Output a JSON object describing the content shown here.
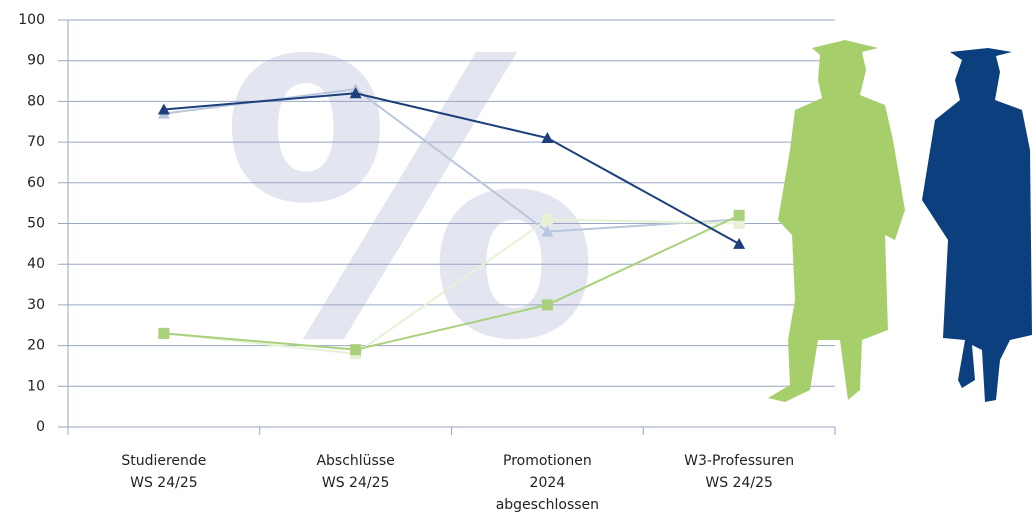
{
  "chart_data": {
    "type": "line",
    "watermark": "%",
    "categories": [
      [
        "Studierende",
        "WS 24/25"
      ],
      [
        "Abschlüsse",
        "WS 24/25"
      ],
      [
        "Promotionen",
        "2024",
        "abgeschlossen"
      ],
      [
        "W3-Professuren",
        "WS 24/25"
      ]
    ],
    "series": [
      {
        "color": "#b9c7de",
        "marker": "triangle",
        "values": [
          77,
          83,
          48,
          51
        ]
      },
      {
        "color": "#e7f1d6",
        "marker": "square",
        "values": [
          23,
          18,
          51,
          50
        ]
      },
      {
        "color": "#a9d17c",
        "marker": "square",
        "values": [
          23,
          19,
          30,
          52
        ]
      },
      {
        "color": "#1d3f7c",
        "marker": "triangle",
        "values": [
          78,
          82,
          71,
          45
        ]
      }
    ],
    "ylim": [
      0,
      100
    ],
    "yticks": [
      0,
      10,
      20,
      30,
      40,
      50,
      60,
      70,
      80,
      90,
      100
    ],
    "grid": true
  }
}
